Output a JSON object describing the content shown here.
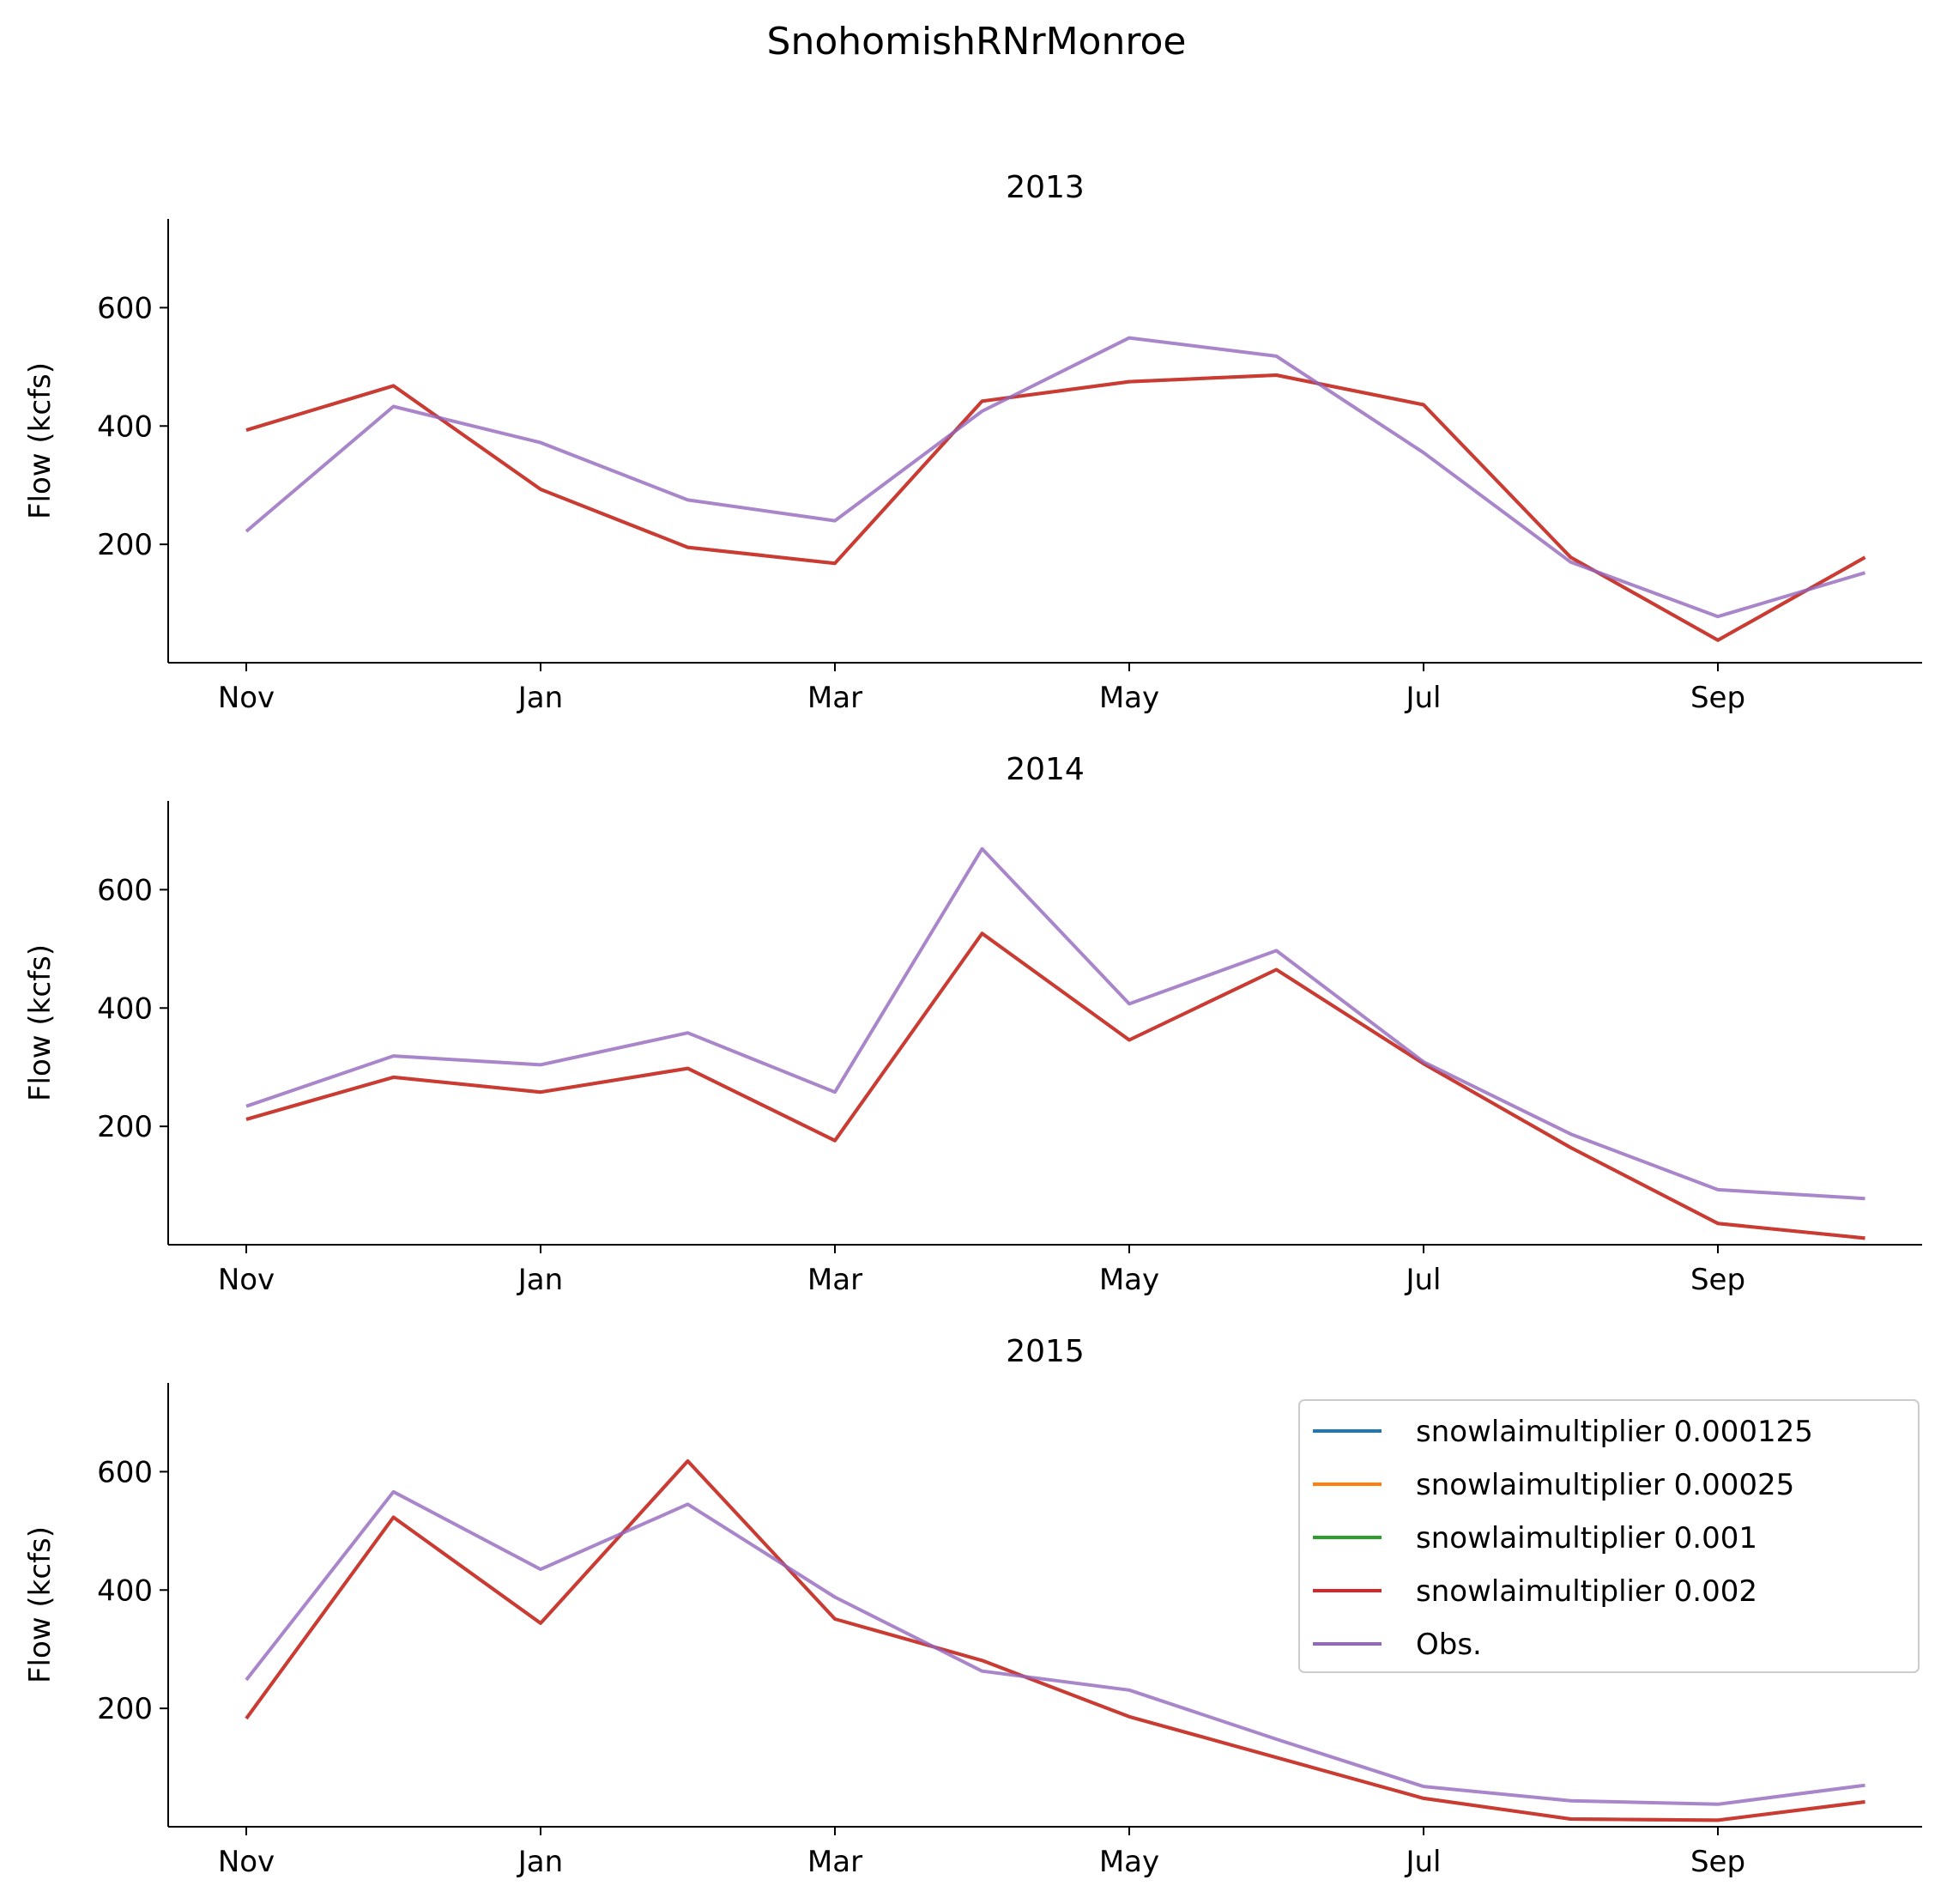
{
  "suptitle": "SnohomishRNrMonroe",
  "chart_data": [
    {
      "type": "line",
      "title": "2013",
      "ylabel": "Flow (kcfs)",
      "xlabel": "",
      "x_ticks": [
        "Nov",
        "Jan",
        "Mar",
        "May",
        "Jul",
        "Sep"
      ],
      "ylim": [
        0,
        750
      ],
      "y_ticks": [
        200,
        400,
        600
      ],
      "x": [
        "Nov",
        "Dec",
        "Jan",
        "Feb",
        "Mar",
        "Apr",
        "May",
        "Jun",
        "Jul",
        "Aug",
        "Sep",
        "Oct"
      ],
      "series": [
        {
          "name": "snowlaimultiplier 0.000125",
          "color": "#1f77b4",
          "values": [
            393,
            468,
            293,
            195,
            168,
            442,
            475,
            486,
            436,
            178,
            38,
            178
          ]
        },
        {
          "name": "snowlaimultiplier 0.00025",
          "color": "#ff7f0e",
          "values": [
            393,
            468,
            293,
            195,
            168,
            442,
            475,
            486,
            436,
            178,
            38,
            178
          ]
        },
        {
          "name": "snowlaimultiplier 0.001",
          "color": "#2ca02c",
          "values": [
            393,
            468,
            293,
            195,
            168,
            442,
            475,
            486,
            436,
            178,
            38,
            178
          ]
        },
        {
          "name": "snowlaimultiplier 0.002",
          "color": "#d62728",
          "values": [
            393,
            468,
            293,
            195,
            168,
            442,
            475,
            486,
            436,
            178,
            38,
            178
          ]
        },
        {
          "name": "Obs.",
          "color": "#9467bd",
          "values": [
            222,
            433,
            372,
            275,
            240,
            425,
            549,
            518,
            355,
            170,
            78,
            152
          ]
        }
      ]
    },
    {
      "type": "line",
      "title": "2014",
      "ylabel": "Flow (kcfs)",
      "xlabel": "",
      "x_ticks": [
        "Nov",
        "Jan",
        "Mar",
        "May",
        "Jul",
        "Sep"
      ],
      "ylim": [
        0,
        750
      ],
      "y_ticks": [
        200,
        400,
        600
      ],
      "x": [
        "Nov",
        "Dec",
        "Jan",
        "Feb",
        "Mar",
        "Apr",
        "May",
        "Jun",
        "Jul",
        "Aug",
        "Sep",
        "Oct"
      ],
      "series": [
        {
          "name": "snowlaimultiplier 0.000125",
          "color": "#1f77b4",
          "values": [
            212,
            283,
            258,
            298,
            176,
            526,
            346,
            465,
            306,
            164,
            36,
            11
          ]
        },
        {
          "name": "snowlaimultiplier 0.00025",
          "color": "#ff7f0e",
          "values": [
            212,
            283,
            258,
            298,
            176,
            526,
            346,
            465,
            306,
            164,
            36,
            11
          ]
        },
        {
          "name": "snowlaimultiplier 0.001",
          "color": "#2ca02c",
          "values": [
            212,
            283,
            258,
            298,
            176,
            526,
            346,
            465,
            306,
            164,
            36,
            11
          ]
        },
        {
          "name": "snowlaimultiplier 0.002",
          "color": "#d62728",
          "values": [
            212,
            283,
            258,
            298,
            176,
            526,
            346,
            465,
            306,
            164,
            36,
            11
          ]
        },
        {
          "name": "Obs.",
          "color": "#9467bd",
          "values": [
            234,
            319,
            304,
            358,
            258,
            669,
            407,
            497,
            309,
            187,
            93,
            78
          ]
        }
      ]
    },
    {
      "type": "line",
      "title": "2015",
      "ylabel": "Flow (kcfs)",
      "xlabel": "",
      "x_ticks": [
        "Nov",
        "Jan",
        "Mar",
        "May",
        "Jul",
        "Sep"
      ],
      "ylim": [
        0,
        750
      ],
      "y_ticks": [
        200,
        400,
        600
      ],
      "x": [
        "Nov",
        "Dec",
        "Jan",
        "Feb",
        "Mar",
        "Apr",
        "May",
        "Jun",
        "Jul",
        "Aug",
        "Sep",
        "Oct"
      ],
      "legend": "upper-right",
      "series": [
        {
          "name": "snowlaimultiplier 0.000125",
          "color": "#1f77b4",
          "values": [
            183,
            523,
            344,
            618,
            351,
            281,
            186,
            117,
            48,
            13,
            11,
            42
          ]
        },
        {
          "name": "snowlaimultiplier 0.00025",
          "color": "#ff7f0e",
          "values": [
            183,
            523,
            344,
            618,
            351,
            281,
            186,
            117,
            48,
            13,
            11,
            42
          ]
        },
        {
          "name": "snowlaimultiplier 0.001",
          "color": "#2ca02c",
          "values": [
            183,
            523,
            344,
            618,
            351,
            281,
            186,
            117,
            48,
            13,
            11,
            42
          ]
        },
        {
          "name": "snowlaimultiplier 0.002",
          "color": "#d62728",
          "values": [
            183,
            523,
            344,
            618,
            351,
            281,
            186,
            117,
            48,
            13,
            11,
            42
          ]
        },
        {
          "name": "Obs.",
          "color": "#9467bd",
          "values": [
            248,
            566,
            435,
            545,
            388,
            263,
            231,
            148,
            68,
            44,
            38,
            70
          ]
        }
      ]
    }
  ]
}
